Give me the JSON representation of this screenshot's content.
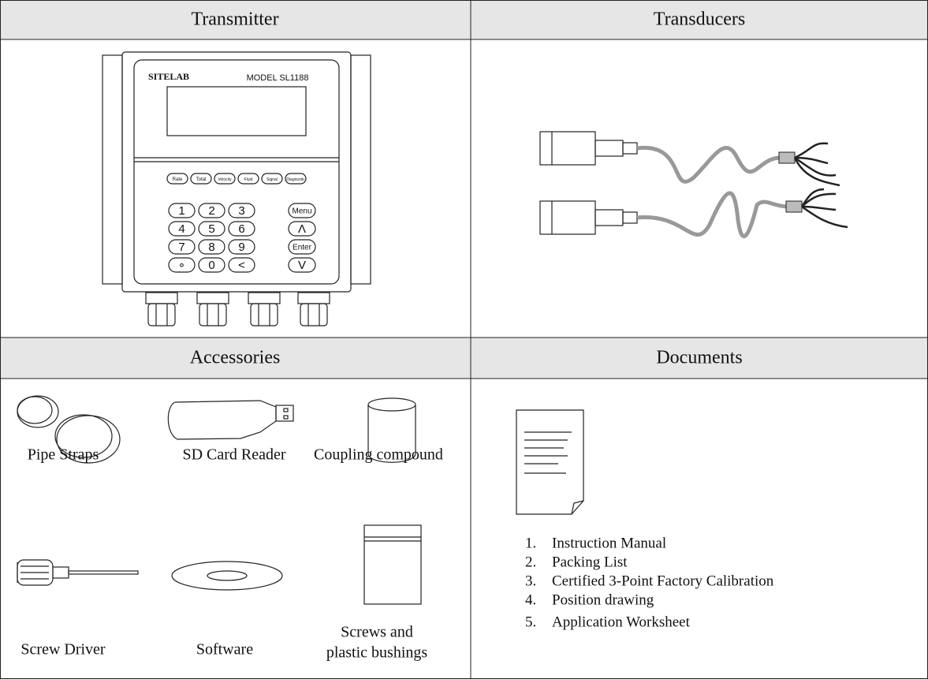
{
  "headers": [
    "Transmitter",
    "Transducers",
    "Accessories",
    "Documents"
  ],
  "transmitter": {
    "brand": "SITELAB",
    "model": "MODEL SL1188",
    "function_keys": [
      "Rate",
      "Total",
      "Velocity",
      "Fluid",
      "Signal",
      "Diagnostic"
    ],
    "keypad": [
      "1",
      "2",
      "3",
      "4",
      "5",
      "6",
      "7",
      "8",
      "9",
      "∘",
      "0",
      "<"
    ],
    "side_keys": [
      "Menu",
      "Λ",
      "Enter",
      "V"
    ]
  },
  "accessories": [
    {
      "label": [
        "Pipe Straps"
      ]
    },
    {
      "label": [
        "SD Card Reader"
      ]
    },
    {
      "label": [
        "Coupling compound"
      ]
    },
    {
      "label": [
        "Screw Driver"
      ]
    },
    {
      "label": [
        "Software"
      ]
    },
    {
      "label": [
        "Screws and",
        "plastic bushings"
      ]
    }
  ],
  "documents": [
    {
      "number": "1.",
      "text": "Instruction Manual"
    },
    {
      "number": "2.",
      "text": "Packing List"
    },
    {
      "number": "3.",
      "text": "Certified 3-Point Factory Calibration"
    },
    {
      "number": "4.",
      "text": "Position drawing"
    },
    {
      "number": "5.",
      "text": "Application Worksheet"
    }
  ]
}
